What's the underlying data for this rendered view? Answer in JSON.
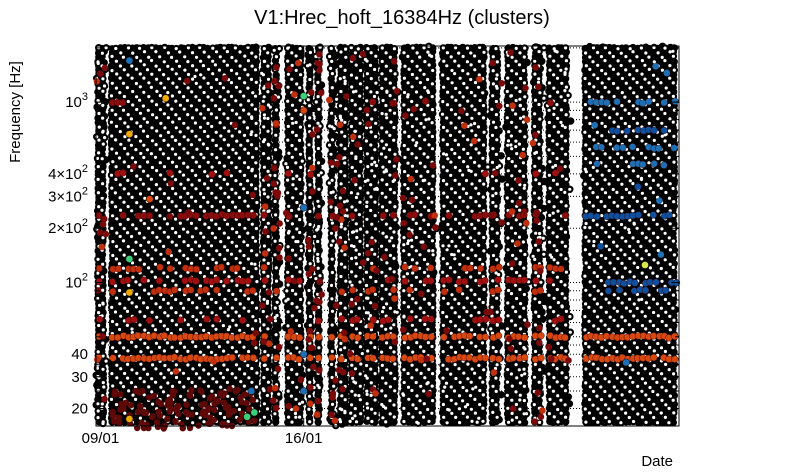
{
  "chart_data": {
    "type": "scatter",
    "title": "V1:Hrec_hoft_16384Hz (clusters)",
    "xlabel": "Date",
    "ylabel": "Frequency [Hz]",
    "x_axis": {
      "unit": "days since 08/01 00:00",
      "range": [
        0.85,
        20.92
      ],
      "ticks": [
        {
          "value": 1.0,
          "label": "09/01"
        },
        {
          "value": 8.0,
          "label": "16/01"
        }
      ]
    },
    "y_axis": {
      "scale": "log",
      "range": [
        16,
        2048
      ],
      "ticks": [
        {
          "value": 20,
          "base": "20",
          "exp": ""
        },
        {
          "value": 30,
          "base": "30",
          "exp": ""
        },
        {
          "value": 40,
          "base": "40",
          "exp": ""
        },
        {
          "value": 100,
          "base": "10",
          "exp": "2"
        },
        {
          "value": 200,
          "base": "2×10",
          "exp": "2"
        },
        {
          "value": 300,
          "base": "3×10",
          "exp": "2"
        },
        {
          "value": 400,
          "base": "4×10",
          "exp": "2"
        },
        {
          "value": 1000,
          "base": "10",
          "exp": "3"
        }
      ],
      "gridlines": [
        20,
        25,
        30,
        35,
        40,
        45,
        50,
        60,
        70,
        80,
        90,
        100,
        200,
        300,
        400,
        500,
        600,
        700,
        800,
        900,
        1000,
        2000
      ]
    },
    "grid": "dotted",
    "data_segments": [
      {
        "start": 0.85,
        "end": 1.2
      },
      {
        "start": 1.32,
        "end": 6.45
      },
      {
        "start": 6.55,
        "end": 6.85
      },
      {
        "start": 6.95,
        "end": 7.18
      },
      {
        "start": 7.38,
        "end": 7.98
      },
      {
        "start": 8.12,
        "end": 8.38
      },
      {
        "start": 8.42,
        "end": 8.62
      },
      {
        "start": 8.88,
        "end": 9.15
      },
      {
        "start": 9.2,
        "end": 9.52
      },
      {
        "start": 9.58,
        "end": 10.05
      },
      {
        "start": 10.1,
        "end": 10.55
      },
      {
        "start": 10.62,
        "end": 11.25
      },
      {
        "start": 11.38,
        "end": 12.6
      },
      {
        "start": 12.72,
        "end": 14.35
      },
      {
        "start": 14.42,
        "end": 14.85
      },
      {
        "start": 14.95,
        "end": 15.75
      },
      {
        "start": 15.88,
        "end": 16.3
      },
      {
        "start": 16.38,
        "end": 17.22
      },
      {
        "start": 17.62,
        "end": 20.92
      }
    ],
    "colored_lines": [
      {
        "freq": 38,
        "color": "#d6480f",
        "density": 0.95,
        "x_from": 0.85,
        "x_to": 20.92
      },
      {
        "freq": 50,
        "color": "#d6480f",
        "density": 0.95,
        "x_from": 0.85,
        "x_to": 20.92
      },
      {
        "freq": 62,
        "color": "#a01010",
        "density": 0.35,
        "x_from": 0.85,
        "x_to": 17.3
      },
      {
        "freq": 90,
        "color": "#c0300c",
        "density": 0.4,
        "x_from": 0.85,
        "x_to": 17.3
      },
      {
        "freq": 102,
        "color": "#a01010",
        "density": 0.45,
        "x_from": 0.85,
        "x_to": 17.3
      },
      {
        "freq": 120,
        "color": "#c0300c",
        "density": 0.35,
        "x_from": 0.85,
        "x_to": 17.3
      },
      {
        "freq": 235,
        "color": "#8b0c0c",
        "density": 0.6,
        "x_from": 0.85,
        "x_to": 17.3
      },
      {
        "freq": 235,
        "color": "#0e4f9e",
        "density": 0.6,
        "x_from": 17.62,
        "x_to": 20.92
      },
      {
        "freq": 100,
        "color": "#0e4f9e",
        "density": 0.7,
        "x_from": 18.4,
        "x_to": 20.92
      },
      {
        "freq": 90,
        "color": "#0e4f9e",
        "density": 0.5,
        "x_from": 18.4,
        "x_to": 20.92
      },
      {
        "freq": 1000,
        "color": "#1f6fb4",
        "density": 0.5,
        "x_from": 17.62,
        "x_to": 20.92
      },
      {
        "freq": 700,
        "color": "#0e4f9e",
        "density": 0.4,
        "x_from": 17.62,
        "x_to": 20.92
      },
      {
        "freq": 560,
        "color": "#1f6fb4",
        "density": 0.4,
        "x_from": 17.62,
        "x_to": 20.92
      },
      {
        "freq": 450,
        "color": "#1f6fb4",
        "density": 0.35,
        "x_from": 17.62,
        "x_to": 20.92
      },
      {
        "freq": 1000,
        "color": "#8b0c0c",
        "density": 0.12,
        "x_from": 0.85,
        "x_to": 17.3
      },
      {
        "freq": 400,
        "color": "#a01010",
        "density": 0.12,
        "x_from": 0.85,
        "x_to": 17.3
      }
    ],
    "highlight_points": [
      {
        "x": 3.25,
        "y": 1050,
        "color": "#f0a900"
      },
      {
        "x": 2.0,
        "y": 665,
        "color": "#f0a900"
      },
      {
        "x": 2.0,
        "y": 1700,
        "color": "#1f6fb4"
      },
      {
        "x": 2.0,
        "y": 135,
        "color": "#3bd07a"
      },
      {
        "x": 2.0,
        "y": 88,
        "color": "#f0a900"
      },
      {
        "x": 2.0,
        "y": 17.5,
        "color": "#f0a900"
      },
      {
        "x": 8.0,
        "y": 1080,
        "color": "#3bd07a"
      },
      {
        "x": 8.0,
        "y": 900,
        "color": "#d6480f"
      },
      {
        "x": 8.0,
        "y": 260,
        "color": "#1f6fb4"
      },
      {
        "x": 8.0,
        "y": 40,
        "color": "#1f6fb4"
      },
      {
        "x": 8.0,
        "y": 25,
        "color": "#1f6fb4"
      },
      {
        "x": 6.3,
        "y": 19,
        "color": "#3bd07a"
      },
      {
        "x": 6.05,
        "y": 18,
        "color": "#3bd07a"
      },
      {
        "x": 6.2,
        "y": 25,
        "color": "#1f6fb4"
      },
      {
        "x": 19.75,
        "y": 125,
        "color": "#d8e84a"
      },
      {
        "x": 2.7,
        "y": 290,
        "color": "#d6480f"
      },
      {
        "x": 20.5,
        "y": 1450,
        "color": "#1f6fb4"
      },
      {
        "x": 19.1,
        "y": 36,
        "color": "#1f6fb4"
      }
    ]
  }
}
